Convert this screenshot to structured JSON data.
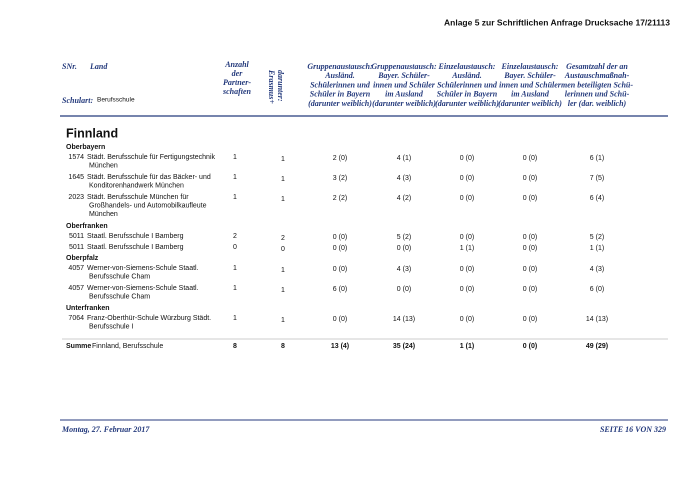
{
  "header": {
    "annex": "Anlage 5 zur Schriftlichen Anfrage Drucksache 17/21113"
  },
  "table": {
    "columns": {
      "snr": "SNr.",
      "land": "Land",
      "schulart_label": "Schulart:",
      "schulart": "Berufsschule",
      "partnerships": [
        "Anzahl",
        "der",
        "Partner-",
        "schaften"
      ],
      "erasmus": [
        "darunter:",
        "Erasmus+"
      ],
      "exchanges": [
        [
          "Gruppenaustausch:",
          "Ausländ.",
          "Schülerinnen und",
          "Schüler in Bayern",
          "(darunter weiblich)"
        ],
        [
          "Gruppenaustausch:",
          "Bayer. Schüler-",
          "innen und Schüler",
          "im Ausland",
          "(darunter weiblich)"
        ],
        [
          "Einzelaustausch:",
          "Ausländ.",
          "Schülerinnen und",
          "Schüler in Bayern",
          "(darunter weiblich)"
        ],
        [
          "Einzelaustausch:",
          "Bayer. Schüler-",
          "innen und Schüler",
          "im Ausland",
          "(darunter weiblich)"
        ],
        [
          "Gesamtzahl der an",
          "Austauschmaßnah-",
          "men beteiligten Schü-",
          "lerinnen und Schü-",
          "ler (dar. weiblich)"
        ]
      ]
    },
    "country": "Finnland",
    "groups": [
      {
        "region": "Oberbayern",
        "rows": [
          {
            "id": "1574",
            "name": [
              "Städt. Berufsschule für Fertigungstechnik",
              "München"
            ],
            "partnerships": 1,
            "erasmus": 1,
            "values": [
              "2 (0)",
              "4 (1)",
              "0 (0)",
              "0 (0)",
              "6 (1)"
            ]
          },
          {
            "id": "1645",
            "name": [
              "Städt. Berufsschule für das Bäcker- und",
              "Konditorenhandwerk München"
            ],
            "partnerships": 1,
            "erasmus": 1,
            "values": [
              "3 (2)",
              "4 (3)",
              "0 (0)",
              "0 (0)",
              "7 (5)"
            ]
          },
          {
            "id": "2023",
            "name": [
              "Städt. Berufsschule München für",
              "Großhandels- und Automobilkaufleute",
              "München"
            ],
            "partnerships": 1,
            "erasmus": 1,
            "values": [
              "2 (2)",
              "4 (2)",
              "0 (0)",
              "0 (0)",
              "6 (4)"
            ]
          }
        ]
      },
      {
        "region": "Oberfranken",
        "rows": [
          {
            "id": "5011",
            "name": [
              "Staatl. Berufsschule I Bamberg"
            ],
            "partnerships": 2,
            "erasmus": 2,
            "values": [
              "0 (0)",
              "5 (2)",
              "0 (0)",
              "0 (0)",
              "5 (2)"
            ]
          },
          {
            "id": "5011",
            "name": [
              "Staatl. Berufsschule I Bamberg"
            ],
            "partnerships": 0,
            "erasmus": 0,
            "values": [
              "0 (0)",
              "0 (0)",
              "1 (1)",
              "0 (0)",
              "1 (1)"
            ]
          }
        ]
      },
      {
        "region": "Oberpfalz",
        "rows": [
          {
            "id": "4057",
            "name": [
              "Werner-von-Siemens-Schule Staatl.",
              "Berufsschule Cham"
            ],
            "partnerships": 1,
            "erasmus": 1,
            "values": [
              "0 (0)",
              "4 (3)",
              "0 (0)",
              "0 (0)",
              "4 (3)"
            ]
          },
          {
            "id": "4057",
            "name": [
              "Werner-von-Siemens-Schule Staatl.",
              "Berufsschule Cham"
            ],
            "partnerships": 1,
            "erasmus": 1,
            "values": [
              "6 (0)",
              "0 (0)",
              "0 (0)",
              "0 (0)",
              "6 (0)"
            ]
          }
        ]
      },
      {
        "region": "Unterfranken",
        "rows": [
          {
            "id": "7064",
            "name": [
              "Franz-Oberthür-Schule Würzburg Städt.",
              "Berufsschule I"
            ],
            "partnerships": 1,
            "erasmus": 1,
            "values": [
              "0 (0)",
              "14 (13)",
              "0 (0)",
              "0 (0)",
              "14 (13)"
            ]
          }
        ]
      }
    ],
    "total": {
      "label": "Summe",
      "name": "Finnland, Berufsschule",
      "partnerships": 8,
      "erasmus": 8,
      "values": [
        "13 (4)",
        "35 (24)",
        "1 (1)",
        "0 (0)",
        "49 (29)"
      ]
    }
  },
  "footer": {
    "date": "Montag, 27. Februar 2017",
    "page": "SEITE 16 VON 329"
  }
}
